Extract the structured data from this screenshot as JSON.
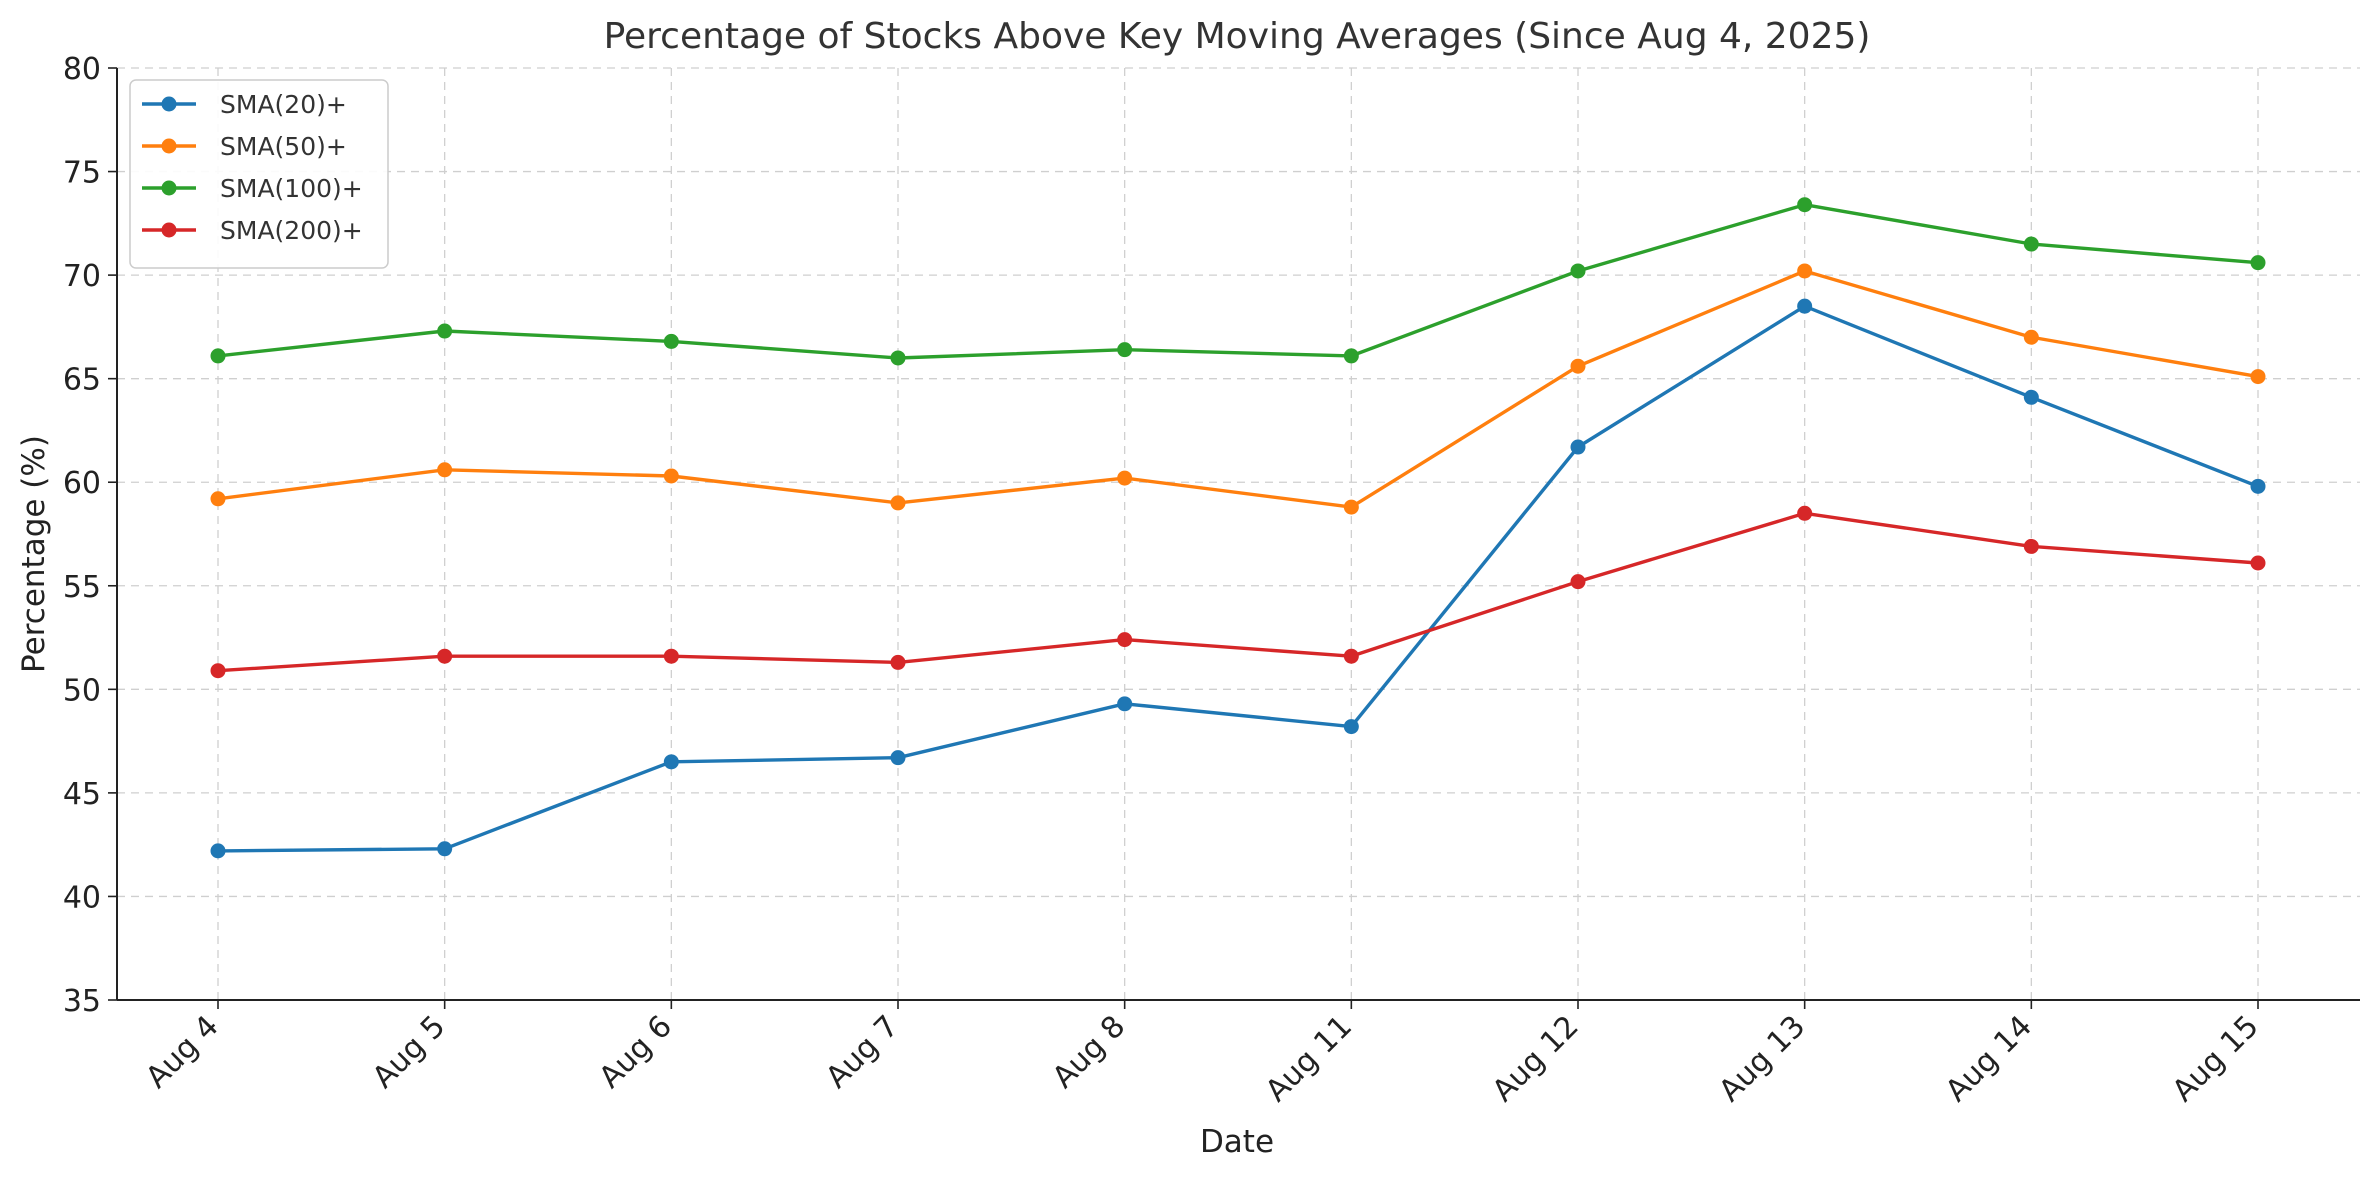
{
  "chart_data": {
    "type": "line",
    "title": "Percentage of Stocks Above Key Moving Averages (Since Aug 4, 2025)",
    "xlabel": "Date",
    "ylabel": "Percentage (%)",
    "categories": [
      "Aug 4",
      "Aug 5",
      "Aug 6",
      "Aug 7",
      "Aug 8",
      "Aug 11",
      "Aug 12",
      "Aug 13",
      "Aug 14",
      "Aug 15"
    ],
    "ylim": [
      35,
      80
    ],
    "yticks": [
      35,
      40,
      45,
      50,
      55,
      60,
      65,
      70,
      75,
      80
    ],
    "grid": true,
    "legend_position": "top-left",
    "series": [
      {
        "name": "SMA(20)+",
        "color": "#1f77b4",
        "values": [
          42.2,
          42.3,
          46.5,
          46.7,
          49.3,
          48.2,
          61.7,
          68.5,
          64.1,
          59.8
        ]
      },
      {
        "name": "SMA(50)+",
        "color": "#ff7f0e",
        "values": [
          59.2,
          60.6,
          60.3,
          59.0,
          60.2,
          58.8,
          65.6,
          70.2,
          67.0,
          65.1
        ]
      },
      {
        "name": "SMA(100)+",
        "color": "#2ca02c",
        "values": [
          66.1,
          67.3,
          66.8,
          66.0,
          66.4,
          66.1,
          70.2,
          73.4,
          71.5,
          70.6
        ]
      },
      {
        "name": "SMA(200)+",
        "color": "#d62728",
        "values": [
          50.9,
          51.6,
          51.6,
          51.3,
          52.4,
          51.6,
          55.2,
          58.5,
          56.9,
          56.1
        ]
      }
    ]
  }
}
